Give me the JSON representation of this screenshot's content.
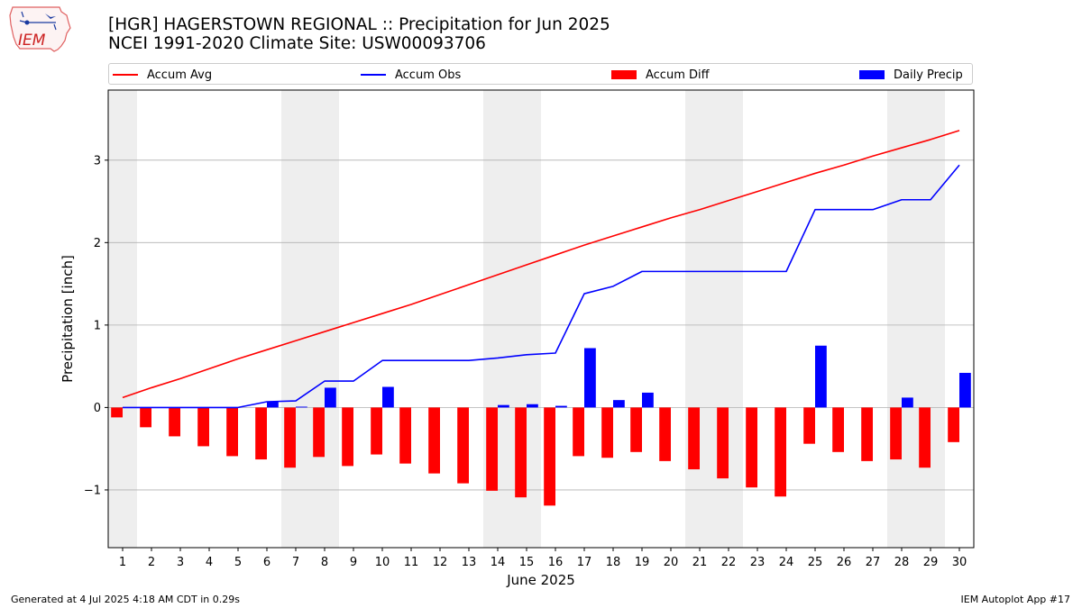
{
  "header": {
    "title_line1": "[HGR] HAGERSTOWN REGIONAL :: Precipitation for Jun 2025",
    "title_line2": "NCEI 1991-2020 Climate Site: USW00093706",
    "logo_text": "IEM"
  },
  "legend": [
    {
      "label": "Accum Avg",
      "kind": "line",
      "color": "#ff0000"
    },
    {
      "label": "Accum Obs",
      "kind": "line",
      "color": "#0000ff"
    },
    {
      "label": "Accum Diff",
      "kind": "patch",
      "color": "#ff0000"
    },
    {
      "label": "Daily Precip",
      "kind": "patch",
      "color": "#0000ff"
    }
  ],
  "footer": {
    "left": "Generated at 4 Jul 2025 4:18 AM CDT in 0.29s",
    "right": "IEM Autoplot App #17"
  },
  "chart_data": {
    "type": "bar",
    "xlabel": "June 2025",
    "ylabel": "Precipitation [inch]",
    "xlim": [
      0.5,
      30.5
    ],
    "ylim": [
      -1.7,
      3.85
    ],
    "yticks": [
      -1,
      0,
      1,
      2,
      3
    ],
    "ytick_labels": [
      "−1",
      "0",
      "1",
      "2",
      "3"
    ],
    "days": [
      1,
      2,
      3,
      4,
      5,
      6,
      7,
      8,
      9,
      10,
      11,
      12,
      13,
      14,
      15,
      16,
      17,
      18,
      19,
      20,
      21,
      22,
      23,
      24,
      25,
      26,
      27,
      28,
      29,
      30
    ],
    "weekend_shading": [
      [
        0.5,
        1.5
      ],
      [
        6.5,
        8.5
      ],
      [
        13.5,
        15.5
      ],
      [
        20.5,
        22.5
      ],
      [
        27.5,
        29.5
      ]
    ],
    "grid": "horizontal",
    "legend_position": "top",
    "series": [
      {
        "name": "Accum Avg",
        "style": "line",
        "color": "#ff0000",
        "values": [
          0.12,
          0.24,
          0.35,
          0.47,
          0.59,
          0.7,
          0.81,
          0.92,
          1.03,
          1.14,
          1.25,
          1.37,
          1.49,
          1.61,
          1.73,
          1.85,
          1.97,
          2.08,
          2.19,
          2.3,
          2.4,
          2.51,
          2.62,
          2.73,
          2.84,
          2.94,
          3.05,
          3.15,
          3.25,
          3.36
        ]
      },
      {
        "name": "Accum Obs",
        "style": "line",
        "color": "#0000ff",
        "values": [
          0.0,
          0.0,
          0.0,
          0.0,
          0.0,
          0.07,
          0.08,
          0.32,
          0.32,
          0.57,
          0.57,
          0.57,
          0.57,
          0.6,
          0.64,
          0.66,
          1.38,
          1.47,
          1.65,
          1.65,
          1.65,
          1.65,
          1.65,
          1.65,
          2.4,
          2.4,
          2.4,
          2.52,
          2.52,
          2.94
        ]
      },
      {
        "name": "Accum Diff",
        "style": "bar",
        "color": "#ff0000",
        "values": [
          -0.12,
          -0.24,
          -0.35,
          -0.47,
          -0.59,
          -0.63,
          -0.73,
          -0.6,
          -0.71,
          -0.57,
          -0.68,
          -0.8,
          -0.92,
          -1.01,
          -1.09,
          -1.19,
          -0.59,
          -0.61,
          -0.54,
          -0.65,
          -0.75,
          -0.86,
          -0.97,
          -1.08,
          -0.44,
          -0.54,
          -0.65,
          -0.63,
          -0.73,
          -0.42
        ]
      },
      {
        "name": "Daily Precip",
        "style": "bar",
        "color": "#0000ff",
        "values": [
          0.0,
          0.0,
          0.0,
          0.0,
          0.0,
          0.07,
          0.01,
          0.24,
          0.0,
          0.25,
          0.0,
          0.0,
          0.0,
          0.03,
          0.04,
          0.02,
          0.72,
          0.09,
          0.18,
          0.0,
          0.0,
          0.0,
          0.0,
          0.0,
          0.75,
          0.0,
          0.0,
          0.12,
          0.0,
          0.42
        ]
      }
    ]
  }
}
